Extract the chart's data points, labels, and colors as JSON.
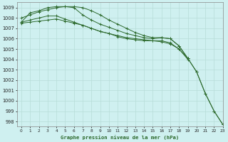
{
  "title": "Graphe pression niveau de la mer (hPa)",
  "bg_color": "#cff0f0",
  "grid_color": "#b8ddd8",
  "line_color": "#2d6a2d",
  "xlim": [
    -0.5,
    23
  ],
  "ylim": [
    997.5,
    1009.5
  ],
  "yticks": [
    998,
    999,
    1000,
    1001,
    1002,
    1003,
    1004,
    1005,
    1006,
    1007,
    1008,
    1009
  ],
  "xticks": [
    0,
    1,
    2,
    3,
    4,
    5,
    6,
    7,
    8,
    9,
    10,
    11,
    12,
    13,
    14,
    15,
    16,
    17,
    18,
    19,
    20,
    21,
    22,
    23
  ],
  "series": [
    [
      1008.0,
      1008.3,
      1008.6,
      1008.8,
      1009.0,
      1009.1,
      1009.1,
      1009.0,
      1008.7,
      1008.3,
      1007.8,
      1007.4,
      1007.0,
      1006.6,
      1006.3,
      1006.1,
      1006.1,
      1006.0,
      1005.3,
      1004.1,
      1002.8,
      1000.7,
      999.0,
      997.7
    ],
    [
      1007.6,
      1008.5,
      1008.7,
      1009.0,
      1009.1,
      1009.1,
      1009.0,
      1008.3,
      1007.8,
      1007.4,
      1007.1,
      1006.8,
      1006.5,
      1006.3,
      1006.1,
      1006.0,
      1006.1,
      1006.0,
      1005.3,
      1004.1,
      1002.8,
      1000.7,
      999.0,
      997.7
    ],
    [
      1007.6,
      1007.8,
      1008.0,
      1008.2,
      1008.2,
      1007.9,
      1007.6,
      1007.3,
      1007.0,
      1006.7,
      1006.5,
      1006.2,
      1006.0,
      1005.9,
      1005.8,
      1005.8,
      1005.8,
      1005.6,
      1005.0,
      1004.0,
      null,
      null,
      null,
      null
    ],
    [
      1007.5,
      1007.6,
      1007.7,
      1007.8,
      1007.9,
      1007.7,
      1007.5,
      1007.3,
      1007.0,
      1006.7,
      1006.5,
      1006.3,
      1006.1,
      1006.0,
      1005.9,
      1005.8,
      1005.7,
      1005.5,
      1005.0,
      1004.1,
      null,
      null,
      null,
      null
    ]
  ]
}
